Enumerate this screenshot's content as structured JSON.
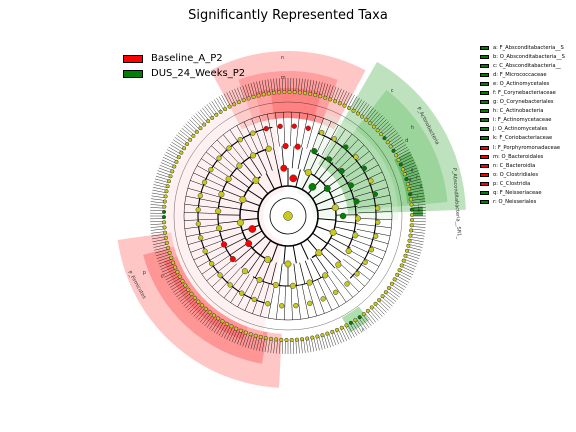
{
  "title": "Significantly Represented Taxa",
  "colors": {
    "baseline": "#ff0000",
    "dus": "#008000",
    "node_default": "#c8c81e",
    "light_red": "#ffb3b3",
    "light_green": "#a8d8a8"
  },
  "legend": [
    {
      "label": "Baseline_A_P2",
      "color": "#ff0000"
    },
    {
      "label": "DUS_24_Weeks_P2",
      "color": "#008000"
    }
  ],
  "taxa": [
    {
      "letter": "a",
      "label": "a: F_Absconditabacteria__S",
      "group": "dus"
    },
    {
      "letter": "b",
      "label": "b: O_Absconditabacteria__S",
      "group": "dus"
    },
    {
      "letter": "c",
      "label": "c: C_Absconditabacteria__",
      "group": "dus"
    },
    {
      "letter": "d",
      "label": "d: F_Micrococcaceae",
      "group": "dus"
    },
    {
      "letter": "e",
      "label": "e: O_Actinomycetales",
      "group": "dus"
    },
    {
      "letter": "f",
      "label": "f: F_Corynebacteriaceae",
      "group": "dus"
    },
    {
      "letter": "g",
      "label": "g: O_Corynebacteriales",
      "group": "dus"
    },
    {
      "letter": "h",
      "label": "h: C_Actinobacteria",
      "group": "dus"
    },
    {
      "letter": "i",
      "label": "i: F_Actinomycetaceae",
      "group": "dus"
    },
    {
      "letter": "j",
      "label": "j: O_Actinomycetales",
      "group": "dus"
    },
    {
      "letter": "k",
      "label": "k: F_Coriobacteriaceae",
      "group": "dus"
    },
    {
      "letter": "l",
      "label": "l: F_Porphyromonadaceae",
      "group": "baseline"
    },
    {
      "letter": "m",
      "label": "m: O_Bacteroidales",
      "group": "baseline"
    },
    {
      "letter": "n",
      "label": "n: C_Bacteroidia",
      "group": "baseline"
    },
    {
      "letter": "o",
      "label": "o: O_Clostridiales",
      "group": "baseline"
    },
    {
      "letter": "p",
      "label": "p: C_Clostridia",
      "group": "baseline"
    },
    {
      "letter": "q",
      "label": "q: F_Neisseriaceae",
      "group": "dus"
    },
    {
      "letter": "r",
      "label": "r: O_Neisseriales",
      "group": "dus"
    }
  ],
  "phylum_labels": [
    {
      "text": "P_Actinobacteria",
      "group": "dus"
    },
    {
      "text": "P_Absconditabacteria__SR1_",
      "group": "dus"
    },
    {
      "text": "P_Firmicutes",
      "group": "baseline"
    }
  ],
  "sector_letters": {
    "outer": [
      "n",
      "m",
      "c",
      "a",
      "h",
      "d",
      "p",
      "o",
      "r"
    ],
    "tiny": [
      "i",
      "j",
      "b",
      "e",
      "f",
      "g"
    ]
  }
}
